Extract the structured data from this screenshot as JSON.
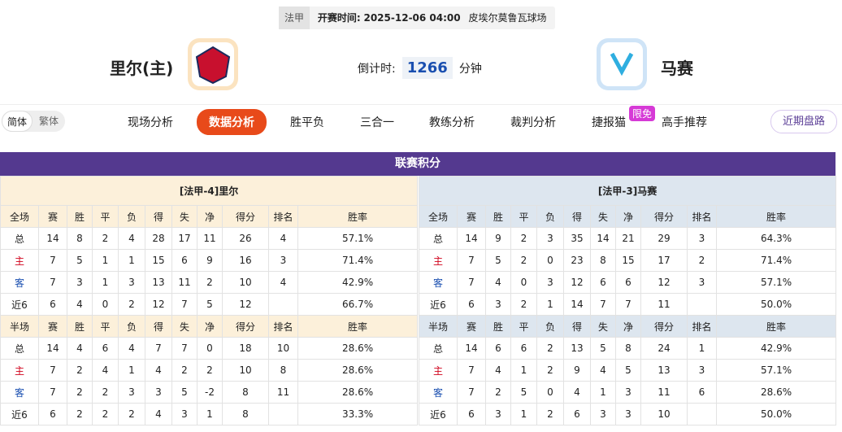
{
  "header": {
    "league": "法甲",
    "kickoff_label": "开赛时间:",
    "kickoff_time": "2025-12-06 04:00",
    "venue": "皮埃尔莫鲁瓦球场"
  },
  "home_team": "里尔(主)",
  "away_team": "马赛",
  "countdown": {
    "label": "倒计时:",
    "value": 1266,
    "unit": "分钟"
  },
  "nav": {
    "lang": [
      "简体",
      "繁体"
    ],
    "tabs": [
      "现场分析",
      "数据分析",
      "胜平负",
      "三合一",
      "教练分析",
      "裁判分析",
      "捷报猫",
      "高手推荐"
    ],
    "badge": "限免",
    "recent": "近期盘路"
  },
  "standings": {
    "title": "联赛积分",
    "tables": [
      {
        "title": "[法甲-4]里尔",
        "sections": [
          {
            "columns": [
              "全场",
              "赛",
              "胜",
              "平",
              "负",
              "得",
              "失",
              "净",
              "得分",
              "排名",
              "胜率"
            ],
            "rows": [
              [
                "总",
                14,
                8,
                2,
                4,
                28,
                17,
                11,
                26,
                4,
                "57.1%"
              ],
              [
                "主",
                7,
                5,
                1,
                1,
                15,
                6,
                9,
                16,
                3,
                "71.4%"
              ],
              [
                "客",
                7,
                3,
                1,
                3,
                13,
                11,
                2,
                10,
                4,
                "42.9%"
              ],
              [
                "近6",
                6,
                4,
                0,
                2,
                12,
                7,
                5,
                12,
                null,
                "66.7%"
              ]
            ]
          },
          {
            "columns": [
              "半场",
              "赛",
              "胜",
              "平",
              "负",
              "得",
              "失",
              "净",
              "得分",
              "排名",
              "胜率"
            ],
            "rows": [
              [
                "总",
                14,
                4,
                6,
                4,
                7,
                7,
                0,
                18,
                10,
                "28.6%"
              ],
              [
                "主",
                7,
                2,
                4,
                1,
                4,
                2,
                2,
                10,
                8,
                "28.6%"
              ],
              [
                "客",
                7,
                2,
                2,
                3,
                3,
                5,
                -2,
                8,
                11,
                "28.6%"
              ],
              [
                "近6",
                6,
                2,
                2,
                2,
                4,
                3,
                1,
                8,
                null,
                "33.3%"
              ]
            ]
          }
        ]
      },
      {
        "title": "[法甲-3]马赛",
        "sections": [
          {
            "columns": [
              "全场",
              "赛",
              "胜",
              "平",
              "负",
              "得",
              "失",
              "净",
              "得分",
              "排名",
              "胜率"
            ],
            "rows": [
              [
                "总",
                14,
                9,
                2,
                3,
                35,
                14,
                21,
                29,
                3,
                "64.3%"
              ],
              [
                "主",
                7,
                5,
                2,
                0,
                23,
                8,
                15,
                17,
                2,
                "71.4%"
              ],
              [
                "客",
                7,
                4,
                0,
                3,
                12,
                6,
                6,
                12,
                3,
                "57.1%"
              ],
              [
                "近6",
                6,
                3,
                2,
                1,
                14,
                7,
                7,
                11,
                null,
                "50.0%"
              ]
            ]
          },
          {
            "columns": [
              "半场",
              "赛",
              "胜",
              "平",
              "负",
              "得",
              "失",
              "净",
              "得分",
              "排名",
              "胜率"
            ],
            "rows": [
              [
                "总",
                14,
                6,
                6,
                2,
                13,
                5,
                8,
                24,
                1,
                "42.9%"
              ],
              [
                "主",
                7,
                4,
                1,
                2,
                9,
                4,
                5,
                13,
                3,
                "57.1%"
              ],
              [
                "客",
                7,
                2,
                5,
                0,
                4,
                1,
                3,
                11,
                6,
                "28.6%"
              ],
              [
                "近6",
                6,
                3,
                1,
                2,
                6,
                3,
                3,
                10,
                null,
                "50.0%"
              ]
            ]
          }
        ]
      }
    ]
  }
}
